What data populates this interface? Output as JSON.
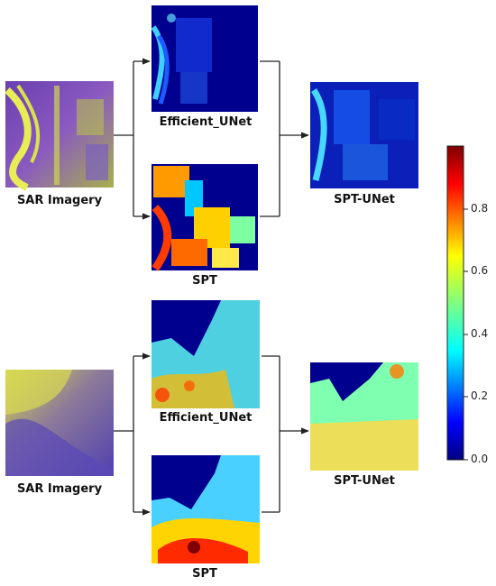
{
  "rows": [
    {
      "input_label": "SAR Imagery",
      "branch_top_label": "Efficient_UNet",
      "branch_bottom_label": "SPT",
      "output_label": "SPT-UNet"
    },
    {
      "input_label": "SAR Imagery",
      "branch_top_label": "Efficient_UNet",
      "branch_bottom_label": "SPT",
      "output_label": "SPT-UNet"
    }
  ],
  "colorbar": {
    "colormap": "jet",
    "range": [
      0.0,
      1.0
    ],
    "ticks": [
      "0.0",
      "0.2",
      "0.4",
      "0.6",
      "0.8"
    ]
  },
  "colors": {
    "arrow": "#222222",
    "jet_low": "#00007f",
    "jet_high": "#7f0000"
  }
}
